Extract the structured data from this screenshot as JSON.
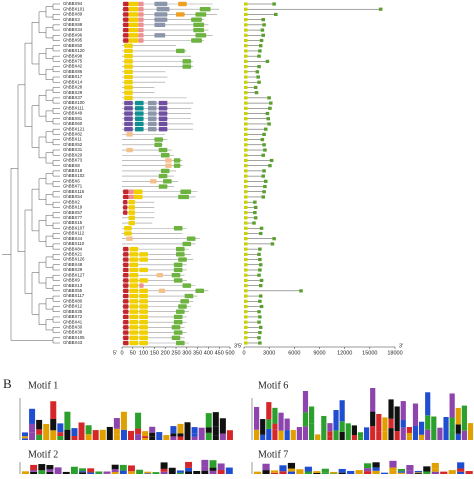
{
  "panel_b_letter": "B",
  "motif_titles": [
    "Motif 1",
    "Motif 6",
    "Motif 2",
    "Motif 7"
  ],
  "end_labels": [
    "5'",
    "3'"
  ],
  "motif_colors": [
    "#c4262e",
    "#f0d000",
    "#ef8f8f",
    "#0f8f8f",
    "#6f4fa0",
    "#6db33f",
    "#f0a020",
    "#8c96aa",
    "#f5c08a"
  ],
  "protein_lim": [
    0,
    500
  ],
  "protein_ticks": [
    0,
    50,
    100,
    150,
    200,
    250,
    300,
    350,
    400,
    450,
    500
  ],
  "gene_lim": [
    0,
    18000
  ],
  "gene_ticks": [
    0,
    3000,
    6000,
    9000,
    12000,
    15000,
    18000
  ],
  "genes": [
    {
      "name": "GhBBX94",
      "length": 420,
      "gene_length": 3800,
      "motifs": [
        [
          1,
          5,
          30
        ],
        [
          2,
          30,
          75
        ],
        [
          3,
          75,
          100
        ],
        [
          8,
          150,
          210
        ],
        [
          7,
          260,
          300
        ]
      ]
    },
    {
      "name": "GhBBX101",
      "length": 450,
      "gene_length": 16500,
      "motifs": [
        [
          1,
          5,
          30
        ],
        [
          2,
          30,
          75
        ],
        [
          3,
          75,
          100
        ],
        [
          8,
          160,
          220
        ],
        [
          6,
          360,
          410
        ]
      ]
    },
    {
      "name": "GhBBX89",
      "length": 440,
      "gene_length": 4000,
      "motifs": [
        [
          1,
          5,
          30
        ],
        [
          2,
          30,
          75
        ],
        [
          3,
          75,
          100
        ],
        [
          8,
          150,
          210
        ],
        [
          7,
          250,
          290
        ],
        [
          6,
          340,
          390
        ]
      ]
    },
    {
      "name": "GhBBX3",
      "length": 380,
      "gene_length": 2500,
      "motifs": [
        [
          1,
          5,
          30
        ],
        [
          2,
          30,
          75
        ],
        [
          3,
          75,
          100
        ],
        [
          8,
          150,
          210
        ],
        [
          6,
          320,
          370
        ]
      ]
    },
    {
      "name": "GhBBX88",
      "length": 400,
      "gene_length": 2600,
      "motifs": [
        [
          1,
          5,
          30
        ],
        [
          2,
          30,
          75
        ],
        [
          3,
          75,
          100
        ],
        [
          8,
          150,
          200
        ],
        [
          6,
          330,
          380
        ]
      ]
    },
    {
      "name": "GhBBX34",
      "length": 400,
      "gene_length": 2400,
      "motifs": [
        [
          1,
          5,
          30
        ],
        [
          2,
          30,
          75
        ],
        [
          3,
          75,
          100
        ],
        [
          6,
          330,
          380
        ]
      ]
    },
    {
      "name": "GhBBX96",
      "length": 420,
      "gene_length": 2500,
      "motifs": [
        [
          1,
          5,
          30
        ],
        [
          2,
          30,
          75
        ],
        [
          3,
          75,
          100
        ],
        [
          8,
          150,
          200
        ],
        [
          6,
          340,
          390
        ]
      ]
    },
    {
      "name": "GhBBX95",
      "length": 380,
      "gene_length": 2300,
      "motifs": [
        [
          1,
          5,
          30
        ],
        [
          2,
          30,
          75
        ],
        [
          3,
          75,
          100
        ],
        [
          6,
          320,
          370
        ]
      ]
    },
    {
      "name": "GhBBX50",
      "length": 250,
      "gene_length": 2200,
      "motifs": [
        [
          2,
          10,
          50
        ]
      ]
    },
    {
      "name": "GhBBX120",
      "length": 300,
      "gene_length": 2100,
      "motifs": [
        [
          2,
          10,
          50
        ],
        [
          6,
          250,
          290
        ]
      ]
    },
    {
      "name": "GhBBX98",
      "length": 320,
      "gene_length": 2000,
      "motifs": [
        [
          2,
          10,
          50
        ]
      ]
    },
    {
      "name": "GhBBX75",
      "length": 330,
      "gene_length": 3000,
      "motifs": [
        [
          2,
          10,
          50
        ],
        [
          6,
          280,
          320
        ]
      ]
    },
    {
      "name": "GhBBX42",
      "length": 330,
      "gene_length": 2000,
      "motifs": [
        [
          2,
          10,
          50
        ],
        [
          6,
          280,
          320
        ]
      ]
    },
    {
      "name": "GhBBX86",
      "length": 200,
      "gene_length": 1800,
      "motifs": [
        [
          2,
          10,
          50
        ]
      ]
    },
    {
      "name": "GhBBX17",
      "length": 210,
      "gene_length": 1900,
      "motifs": [
        [
          2,
          10,
          50
        ]
      ]
    },
    {
      "name": "GhBBX14",
      "length": 200,
      "gene_length": 2000,
      "motifs": [
        [
          2,
          10,
          50
        ]
      ]
    },
    {
      "name": "GhBBX28",
      "length": 150,
      "gene_length": 1600,
      "motifs": [
        [
          2,
          10,
          50
        ]
      ]
    },
    {
      "name": "GhBBX29",
      "length": 150,
      "gene_length": 1700,
      "motifs": [
        [
          2,
          10,
          50
        ]
      ]
    },
    {
      "name": "GhBBX37",
      "length": 300,
      "gene_length": 3200,
      "motifs": [
        [
          2,
          10,
          50
        ]
      ]
    },
    {
      "name": "GhBBX100",
      "length": 330,
      "gene_length": 3400,
      "motifs": [
        [
          5,
          10,
          50
        ],
        [
          4,
          60,
          100
        ],
        [
          8,
          120,
          160
        ],
        [
          5,
          170,
          210
        ]
      ]
    },
    {
      "name": "GhBBX111",
      "length": 320,
      "gene_length": 3300,
      "motifs": [
        [
          5,
          10,
          50
        ],
        [
          4,
          60,
          100
        ],
        [
          8,
          120,
          160
        ],
        [
          5,
          170,
          210
        ]
      ]
    },
    {
      "name": "GhBBX49",
      "length": 320,
      "gene_length": 3000,
      "motifs": [
        [
          5,
          10,
          50
        ],
        [
          4,
          60,
          100
        ],
        [
          8,
          120,
          160
        ],
        [
          5,
          170,
          210
        ]
      ]
    },
    {
      "name": "GhBBX81",
      "length": 320,
      "gene_length": 3100,
      "motifs": [
        [
          5,
          10,
          50
        ],
        [
          4,
          60,
          100
        ],
        [
          8,
          120,
          160
        ],
        [
          5,
          170,
          210
        ]
      ]
    },
    {
      "name": "GhBBX60",
      "length": 330,
      "gene_length": 3200,
      "motifs": [
        [
          5,
          10,
          50
        ],
        [
          4,
          60,
          100
        ],
        [
          8,
          120,
          160
        ],
        [
          5,
          170,
          210
        ]
      ]
    },
    {
      "name": "GhBBX121",
      "length": 330,
      "gene_length": 2800,
      "motifs": [
        [
          5,
          10,
          50
        ],
        [
          4,
          60,
          100
        ],
        [
          8,
          120,
          160
        ],
        [
          5,
          170,
          210
        ]
      ]
    },
    {
      "name": "GhBBX82",
      "length": 200,
      "gene_length": 2600,
      "motifs": [
        [
          9,
          20,
          50
        ]
      ]
    },
    {
      "name": "GhBBX11",
      "length": 210,
      "gene_length": 2400,
      "motifs": [
        [
          6,
          150,
          190
        ]
      ]
    },
    {
      "name": "GhBBX52",
      "length": 190,
      "gene_length": 2600,
      "motifs": [
        [
          6,
          150,
          185
        ]
      ]
    },
    {
      "name": "GhBBX31",
      "length": 230,
      "gene_length": 2700,
      "motifs": [
        [
          9,
          20,
          50
        ],
        [
          6,
          170,
          210
        ]
      ]
    },
    {
      "name": "GhBBX20",
      "length": 240,
      "gene_length": 2500,
      "motifs": [
        [
          6,
          180,
          220
        ]
      ]
    },
    {
      "name": "GhBBX73",
      "length": 280,
      "gene_length": 3500,
      "motifs": [
        [
          9,
          200,
          230
        ],
        [
          6,
          240,
          270
        ]
      ]
    },
    {
      "name": "GhBBX8",
      "length": 280,
      "gene_length": 3300,
      "motifs": [
        [
          9,
          200,
          230
        ],
        [
          6,
          240,
          270
        ]
      ]
    },
    {
      "name": "GhBBX18",
      "length": 250,
      "gene_length": 2600,
      "motifs": [
        [
          6,
          180,
          220
        ]
      ]
    },
    {
      "name": "GhBBX102",
      "length": 240,
      "gene_length": 2500,
      "motifs": [
        [
          6,
          170,
          210
        ]
      ]
    },
    {
      "name": "GhBBX6",
      "length": 260,
      "gene_length": 2800,
      "motifs": [
        [
          9,
          130,
          160
        ],
        [
          6,
          190,
          230
        ]
      ]
    },
    {
      "name": "GhBBX71",
      "length": 240,
      "gene_length": 2700,
      "motifs": [
        [
          6,
          170,
          210
        ]
      ]
    },
    {
      "name": "GhBBX116",
      "length": 350,
      "gene_length": 2600,
      "motifs": [
        [
          1,
          5,
          30
        ],
        [
          3,
          30,
          55
        ],
        [
          2,
          55,
          95
        ],
        [
          6,
          270,
          320
        ]
      ]
    },
    {
      "name": "GhBBX54",
      "length": 340,
      "gene_length": 2500,
      "motifs": [
        [
          1,
          5,
          30
        ],
        [
          3,
          30,
          55
        ],
        [
          2,
          55,
          95
        ],
        [
          6,
          260,
          310
        ]
      ]
    },
    {
      "name": "GhBBX2",
      "length": 150,
      "gene_length": 1500,
      "motifs": [
        [
          1,
          5,
          25
        ],
        [
          2,
          30,
          60
        ]
      ]
    },
    {
      "name": "GhBBX19",
      "length": 150,
      "gene_length": 1600,
      "motifs": [
        [
          1,
          5,
          25
        ],
        [
          2,
          30,
          60
        ]
      ]
    },
    {
      "name": "GhBBX57",
      "length": 150,
      "gene_length": 1500,
      "motifs": [
        [
          1,
          5,
          25
        ],
        [
          2,
          30,
          60
        ]
      ]
    },
    {
      "name": "GhBBX77",
      "length": 150,
      "gene_length": 1600,
      "motifs": [
        [
          2,
          30,
          60
        ]
      ]
    },
    {
      "name": "GhBBX15",
      "length": 140,
      "gene_length": 1400,
      "motifs": [
        [
          2,
          30,
          60
        ]
      ]
    },
    {
      "name": "GhBBX107",
      "length": 300,
      "gene_length": 2300,
      "motifs": [
        [
          2,
          10,
          45
        ],
        [
          6,
          240,
          280
        ]
      ]
    },
    {
      "name": "GhBBX112",
      "length": 280,
      "gene_length": 2200,
      "motifs": [
        [
          2,
          10,
          45
        ]
      ]
    },
    {
      "name": "GhBBX44",
      "length": 360,
      "gene_length": 3800,
      "motifs": [
        [
          9,
          20,
          50
        ],
        [
          6,
          300,
          340
        ]
      ]
    },
    {
      "name": "GhBBX110",
      "length": 340,
      "gene_length": 3600,
      "motifs": [
        [
          6,
          280,
          320
        ]
      ]
    },
    {
      "name": "GhBBX84",
      "length": 310,
      "gene_length": 2100,
      "motifs": [
        [
          1,
          5,
          30
        ],
        [
          2,
          35,
          75
        ],
        [
          6,
          250,
          290
        ]
      ]
    },
    {
      "name": "GhBBX21",
      "length": 320,
      "gene_length": 2000,
      "motifs": [
        [
          1,
          5,
          30
        ],
        [
          2,
          35,
          75
        ],
        [
          2,
          80,
          120
        ],
        [
          6,
          250,
          290
        ]
      ]
    },
    {
      "name": "GhBBX126",
      "length": 330,
      "gene_length": 2100,
      "motifs": [
        [
          1,
          5,
          30
        ],
        [
          2,
          35,
          75
        ],
        [
          2,
          80,
          120
        ],
        [
          6,
          260,
          300
        ]
      ]
    },
    {
      "name": "GhBBX48",
      "length": 300,
      "gene_length": 2200,
      "motifs": [
        [
          1,
          5,
          30
        ],
        [
          2,
          35,
          75
        ],
        [
          6,
          240,
          280
        ]
      ]
    },
    {
      "name": "GhBBX29",
      "length": 300,
      "gene_length": 2100,
      "motifs": [
        [
          1,
          5,
          30
        ],
        [
          2,
          35,
          75
        ],
        [
          2,
          80,
          120
        ],
        [
          6,
          240,
          280
        ]
      ]
    },
    {
      "name": "GhBBX127",
      "length": 290,
      "gene_length": 2000,
      "motifs": [
        [
          1,
          5,
          30
        ],
        [
          2,
          35,
          75
        ],
        [
          9,
          160,
          190
        ],
        [
          6,
          230,
          270
        ]
      ]
    },
    {
      "name": "GhBBX9",
      "length": 300,
      "gene_length": 2300,
      "motifs": [
        [
          1,
          5,
          30
        ],
        [
          2,
          35,
          75
        ],
        [
          2,
          80,
          120
        ],
        [
          6,
          240,
          280
        ]
      ]
    },
    {
      "name": "GhBBX13",
      "length": 340,
      "gene_length": 2200,
      "motifs": [
        [
          1,
          5,
          30
        ],
        [
          2,
          35,
          75
        ],
        [
          3,
          80,
          100
        ],
        [
          6,
          280,
          320
        ]
      ]
    },
    {
      "name": "GhBBX55",
      "length": 400,
      "gene_length": 7000,
      "motifs": [
        [
          1,
          5,
          30
        ],
        [
          2,
          35,
          75
        ],
        [
          2,
          80,
          120
        ],
        [
          9,
          170,
          200
        ],
        [
          6,
          340,
          380
        ]
      ]
    },
    {
      "name": "GhBBX117",
      "length": 350,
      "gene_length": 2200,
      "motifs": [
        [
          1,
          5,
          30
        ],
        [
          2,
          35,
          75
        ],
        [
          2,
          80,
          120
        ],
        [
          6,
          290,
          330
        ]
      ]
    },
    {
      "name": "GhBBX80",
      "length": 330,
      "gene_length": 2100,
      "motifs": [
        [
          1,
          5,
          30
        ],
        [
          2,
          35,
          75
        ],
        [
          2,
          80,
          120
        ],
        [
          6,
          270,
          310
        ]
      ]
    },
    {
      "name": "GhBBX12",
      "length": 320,
      "gene_length": 2300,
      "motifs": [
        [
          1,
          5,
          30
        ],
        [
          2,
          35,
          75
        ],
        [
          2,
          80,
          120
        ],
        [
          6,
          260,
          300
        ]
      ]
    },
    {
      "name": "GhBBX35",
      "length": 310,
      "gene_length": 2000,
      "motifs": [
        [
          1,
          5,
          30
        ],
        [
          2,
          35,
          75
        ],
        [
          2,
          80,
          120
        ],
        [
          6,
          250,
          290
        ]
      ]
    },
    {
      "name": "GhBBX72",
      "length": 300,
      "gene_length": 2100,
      "motifs": [
        [
          1,
          5,
          30
        ],
        [
          2,
          35,
          75
        ],
        [
          2,
          80,
          120
        ],
        [
          6,
          240,
          280
        ]
      ]
    },
    {
      "name": "GhBBX41",
      "length": 300,
      "gene_length": 2000,
      "motifs": [
        [
          1,
          5,
          30
        ],
        [
          2,
          35,
          75
        ],
        [
          2,
          80,
          120
        ],
        [
          6,
          240,
          280
        ]
      ]
    },
    {
      "name": "GhBBX30",
      "length": 290,
      "gene_length": 2200,
      "motifs": [
        [
          1,
          5,
          30
        ],
        [
          2,
          35,
          75
        ],
        [
          2,
          80,
          120
        ],
        [
          6,
          230,
          270
        ]
      ]
    },
    {
      "name": "GhBBX39",
      "length": 300,
      "gene_length": 2100,
      "motifs": [
        [
          1,
          5,
          30
        ],
        [
          2,
          35,
          75
        ],
        [
          2,
          80,
          120
        ],
        [
          6,
          240,
          280
        ]
      ]
    },
    {
      "name": "GhBBX105",
      "length": 290,
      "gene_length": 2000,
      "motifs": [
        [
          1,
          5,
          30
        ],
        [
          2,
          35,
          75
        ],
        [
          2,
          80,
          120
        ],
        [
          6,
          230,
          270
        ]
      ]
    },
    {
      "name": "GhBBX43",
      "length": 310,
      "gene_length": 2100,
      "motifs": [
        [
          1,
          5,
          30
        ],
        [
          2,
          35,
          75
        ],
        [
          2,
          80,
          120
        ],
        [
          6,
          250,
          290
        ]
      ]
    }
  ]
}
